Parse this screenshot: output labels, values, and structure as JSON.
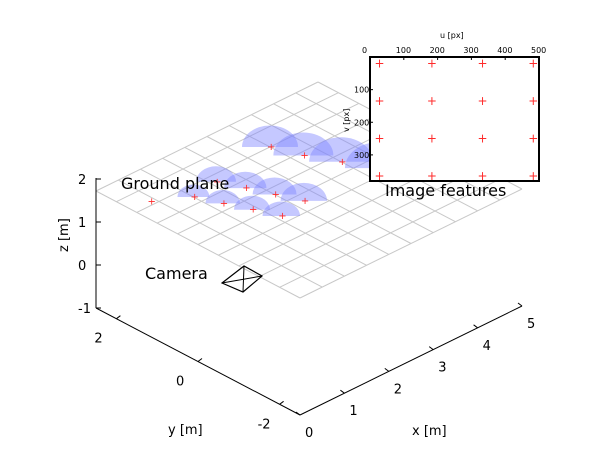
{
  "chart_data": [
    {
      "type": "scatter",
      "title": "",
      "xlabel": "x [m]",
      "ylabel": "y [m]",
      "zlabel": "z [m]",
      "xlim": [
        0,
        5
      ],
      "ylim": [
        -2.5,
        2.5
      ],
      "zlim": [
        -1,
        2
      ],
      "xticks": [
        "0",
        "1",
        "2",
        "3",
        "4",
        "5"
      ],
      "yticks": [
        "-2",
        "0",
        "2"
      ],
      "zticks": [
        "-1",
        "0",
        "1",
        "2"
      ],
      "grid": true,
      "annotations": [
        "Ground plane",
        "Camera",
        "Image features"
      ],
      "camera": {
        "x": 0.4,
        "y": 1.6,
        "z": 0.0
      },
      "features_3d": [
        {
          "x": 1.0,
          "y": 1.2,
          "z": 0,
          "r": 0.15
        },
        {
          "x": 1.2,
          "y": 0.7,
          "z": 0,
          "r": 0.18
        },
        {
          "x": 1.4,
          "y": 0.2,
          "z": 0,
          "r": 0.2
        },
        {
          "x": 1.6,
          "y": -0.3,
          "z": 0,
          "r": 0.22
        },
        {
          "x": 1.6,
          "y": 1.3,
          "z": 0,
          "r": 0.25
        },
        {
          "x": 1.8,
          "y": 0.8,
          "z": 0,
          "r": 0.28
        },
        {
          "x": 2.0,
          "y": 0.3,
          "z": 0,
          "r": 0.3
        },
        {
          "x": 2.2,
          "y": -0.2,
          "z": 0,
          "r": 0.33
        },
        {
          "x": 3.0,
          "y": 1.5,
          "z": 0,
          "r": 0.45
        },
        {
          "x": 3.2,
          "y": 0.9,
          "z": 0,
          "r": 0.5
        },
        {
          "x": 3.5,
          "y": 0.3,
          "z": 0,
          "r": 0.55
        },
        {
          "x": 3.8,
          "y": -0.3,
          "z": 0,
          "r": 0.6
        }
      ]
    },
    {
      "type": "scatter",
      "title": "Image features",
      "xlabel": "u [px]",
      "ylabel": "v [px]",
      "xlim": [
        0,
        500
      ],
      "ylim": [
        380,
        0
      ],
      "xticks": [
        "0",
        "100",
        "200",
        "300",
        "400",
        "500"
      ],
      "yticks": [
        "100",
        "200",
        "300"
      ],
      "points": [
        {
          "u": 25,
          "v": 20
        },
        {
          "u": 180,
          "v": 20
        },
        {
          "u": 330,
          "v": 20
        },
        {
          "u": 480,
          "v": 20
        },
        {
          "u": 25,
          "v": 135
        },
        {
          "u": 180,
          "v": 135
        },
        {
          "u": 330,
          "v": 135
        },
        {
          "u": 480,
          "v": 135
        },
        {
          "u": 25,
          "v": 250
        },
        {
          "u": 180,
          "v": 250
        },
        {
          "u": 330,
          "v": 250
        },
        {
          "u": 480,
          "v": 250
        },
        {
          "u": 25,
          "v": 365
        },
        {
          "u": 180,
          "v": 365
        },
        {
          "u": 330,
          "v": 365
        },
        {
          "u": 480,
          "v": 365
        }
      ]
    }
  ],
  "colors": {
    "marker": "#ff2a2a",
    "ellipse": "#7f86ff",
    "grid": "#c8c8c8",
    "axis": "#000000"
  }
}
